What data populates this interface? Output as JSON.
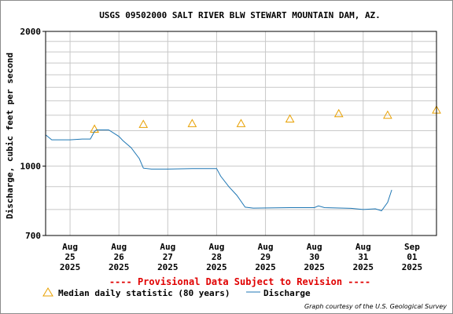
{
  "chart_data": {
    "type": "line",
    "title": "USGS 09502000 SALT RIVER BLW STEWART MOUNTAIN DAM, AZ.",
    "ylabel": "Discharge, cubic feet per second",
    "y_scale": "log",
    "ylim": [
      700,
      2000
    ],
    "y_ticks": [
      "2000",
      "1000",
      "700"
    ],
    "xlim": [
      "2025-08-24T12:00",
      "2025-09-01T12:00"
    ],
    "x_ticks": [
      {
        "date": "2025-08-25",
        "month": "Aug",
        "day": "25",
        "year": "2025"
      },
      {
        "date": "2025-08-26",
        "month": "Aug",
        "day": "26",
        "year": "2025"
      },
      {
        "date": "2025-08-27",
        "month": "Aug",
        "day": "27",
        "year": "2025"
      },
      {
        "date": "2025-08-28",
        "month": "Aug",
        "day": "28",
        "year": "2025"
      },
      {
        "date": "2025-08-29",
        "month": "Aug",
        "day": "29",
        "year": "2025"
      },
      {
        "date": "2025-08-30",
        "month": "Aug",
        "day": "30",
        "year": "2025"
      },
      {
        "date": "2025-08-31",
        "month": "Aug",
        "day": "31",
        "year": "2025"
      },
      {
        "date": "2025-09-01",
        "month": "Sep",
        "day": "01",
        "year": "2025"
      }
    ],
    "grid": true,
    "series": [
      {
        "name": "Median daily statistic (80 years)",
        "marker": "triangle",
        "color": "#e8a000",
        "points": [
          {
            "x": "2025-08-25T12:00",
            "y": 1210
          },
          {
            "x": "2025-08-26T12:00",
            "y": 1240
          },
          {
            "x": "2025-08-27T12:00",
            "y": 1245
          },
          {
            "x": "2025-08-28T12:00",
            "y": 1245
          },
          {
            "x": "2025-08-29T12:00",
            "y": 1275
          },
          {
            "x": "2025-08-30T12:00",
            "y": 1310
          },
          {
            "x": "2025-08-31T12:00",
            "y": 1300
          },
          {
            "x": "2025-09-01T12:00",
            "y": 1335
          }
        ]
      },
      {
        "name": "Discharge",
        "color": "#1f77b4",
        "points": [
          {
            "x": "2025-08-24T12:00",
            "y": 1175
          },
          {
            "x": "2025-08-24T15:00",
            "y": 1145
          },
          {
            "x": "2025-08-25T00:00",
            "y": 1145
          },
          {
            "x": "2025-08-25T06:00",
            "y": 1150
          },
          {
            "x": "2025-08-25T10:00",
            "y": 1150
          },
          {
            "x": "2025-08-25T12:00",
            "y": 1195
          },
          {
            "x": "2025-08-25T13:00",
            "y": 1205
          },
          {
            "x": "2025-08-25T19:00",
            "y": 1205
          },
          {
            "x": "2025-08-26T00:00",
            "y": 1165
          },
          {
            "x": "2025-08-26T02:00",
            "y": 1140
          },
          {
            "x": "2025-08-26T06:00",
            "y": 1100
          },
          {
            "x": "2025-08-26T10:00",
            "y": 1040
          },
          {
            "x": "2025-08-26T12:00",
            "y": 990
          },
          {
            "x": "2025-08-26T16:00",
            "y": 985
          },
          {
            "x": "2025-08-27T00:00",
            "y": 985
          },
          {
            "x": "2025-08-27T12:00",
            "y": 988
          },
          {
            "x": "2025-08-28T00:00",
            "y": 988
          },
          {
            "x": "2025-08-28T02:00",
            "y": 950
          },
          {
            "x": "2025-08-28T06:00",
            "y": 900
          },
          {
            "x": "2025-08-28T10:00",
            "y": 860
          },
          {
            "x": "2025-08-28T14:00",
            "y": 810
          },
          {
            "x": "2025-08-28T18:00",
            "y": 806
          },
          {
            "x": "2025-08-29T12:00",
            "y": 808
          },
          {
            "x": "2025-08-30T00:00",
            "y": 808
          },
          {
            "x": "2025-08-30T02:00",
            "y": 815
          },
          {
            "x": "2025-08-30T05:00",
            "y": 808
          },
          {
            "x": "2025-08-30T18:00",
            "y": 805
          },
          {
            "x": "2025-08-31T00:00",
            "y": 800
          },
          {
            "x": "2025-08-31T06:00",
            "y": 803
          },
          {
            "x": "2025-08-31T09:00",
            "y": 795
          },
          {
            "x": "2025-08-31T12:00",
            "y": 830
          },
          {
            "x": "2025-08-31T14:00",
            "y": 885
          }
        ]
      }
    ],
    "notice": "---- Provisional Data Subject to Revision ----",
    "legend": [
      {
        "label": "Median daily statistic (80 years)",
        "symbol": "triangle"
      },
      {
        "label": "Discharge",
        "symbol": "line"
      }
    ],
    "credit": "Graph courtesy of the U.S. Geological Survey",
    "colors": {
      "median": "#e8a000",
      "discharge": "#1f77b4",
      "notice": "#e00000",
      "grid": "#c8c8c8"
    }
  }
}
